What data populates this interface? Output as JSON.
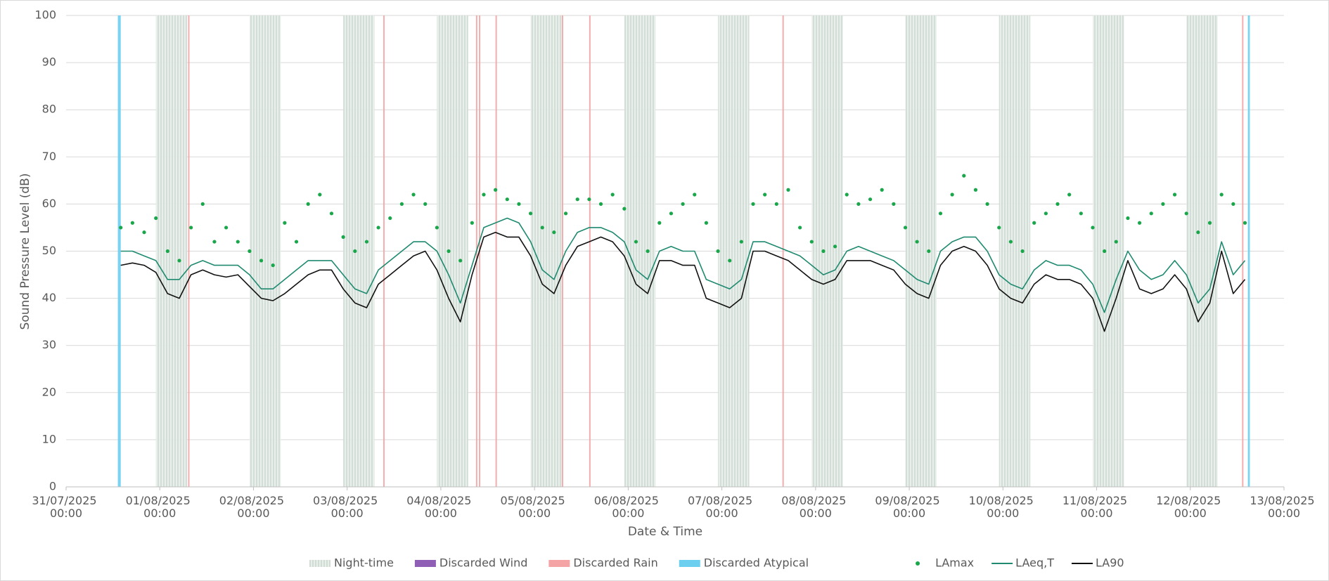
{
  "chart_data": {
    "type": "line",
    "xlabel": "Date & Time",
    "ylabel": "Sound Pressure Level (dB)",
    "xlim": [
      "31/07/2025 00:00",
      "13/08/2025 00:00"
    ],
    "xticks": [
      "31/07/2025 00:00",
      "01/08/2025 00:00",
      "02/08/2025 00:00",
      "03/08/2025 00:00",
      "04/08/2025 00:00",
      "05/08/2025 00:00",
      "06/08/2025 00:00",
      "07/08/2025 00:00",
      "08/08/2025 00:00",
      "09/08/2025 00:00",
      "10/08/2025 00:00",
      "11/08/2025 00:00",
      "12/08/2025 00:00",
      "13/08/2025 00:00"
    ],
    "ylim": [
      0,
      100
    ],
    "yticks": [
      0,
      10,
      20,
      30,
      40,
      50,
      60,
      70,
      80,
      90,
      100
    ],
    "grid": true,
    "legend": "bottom",
    "periods": [
      {
        "name": "Night-time",
        "color": "#d3ddd6",
        "ranges": [
          [
            "31/07/2025 23:00",
            "01/08/2025 07:00"
          ],
          [
            "01/08/2025 23:00",
            "02/08/2025 07:00"
          ],
          [
            "02/08/2025 23:00",
            "03/08/2025 07:00"
          ],
          [
            "03/08/2025 23:00",
            "04/08/2025 07:00"
          ],
          [
            "04/08/2025 23:00",
            "05/08/2025 07:00"
          ],
          [
            "05/08/2025 23:00",
            "06/08/2025 07:00"
          ],
          [
            "06/08/2025 23:00",
            "07/08/2025 07:00"
          ],
          [
            "07/08/2025 23:00",
            "08/08/2025 07:00"
          ],
          [
            "08/08/2025 23:00",
            "09/08/2025 07:00"
          ],
          [
            "09/08/2025 23:00",
            "10/08/2025 07:00"
          ],
          [
            "10/08/2025 23:00",
            "11/08/2025 07:00"
          ],
          [
            "11/08/2025 23:00",
            "12/08/2025 07:00"
          ]
        ]
      },
      {
        "name": "Discarded Wind",
        "color": "#8e5fb5",
        "ranges": []
      },
      {
        "name": "Discarded Rain",
        "color": "#f4a4a4",
        "ranges": [
          [
            "01/08/2025 07:15",
            "01/08/2025 07:30"
          ],
          [
            "03/08/2025 09:15",
            "03/08/2025 09:30"
          ],
          [
            "04/08/2025 09:00",
            "04/08/2025 09:15"
          ],
          [
            "04/08/2025 09:45",
            "04/08/2025 10:00"
          ],
          [
            "04/08/2025 14:00",
            "04/08/2025 14:15"
          ],
          [
            "05/08/2025 07:00",
            "05/08/2025 07:15"
          ],
          [
            "05/08/2025 14:00",
            "05/08/2025 14:15"
          ],
          [
            "07/08/2025 15:30",
            "07/08/2025 15:45"
          ],
          [
            "12/08/2025 13:15",
            "12/08/2025 13:30"
          ]
        ]
      },
      {
        "name": "Discarded Atypical",
        "color": "#6ccff0",
        "ranges": [
          [
            "31/07/2025 13:15",
            "31/07/2025 14:00"
          ],
          [
            "12/08/2025 14:45",
            "12/08/2025 15:15"
          ]
        ]
      }
    ],
    "x": [
      "31/07/2025 14:00",
      "31/07/2025 17:00",
      "31/07/2025 20:00",
      "31/07/2025 23:00",
      "01/08/2025 02:00",
      "01/08/2025 05:00",
      "01/08/2025 08:00",
      "01/08/2025 11:00",
      "01/08/2025 14:00",
      "01/08/2025 17:00",
      "01/08/2025 20:00",
      "01/08/2025 23:00",
      "02/08/2025 02:00",
      "02/08/2025 05:00",
      "02/08/2025 08:00",
      "02/08/2025 11:00",
      "02/08/2025 14:00",
      "02/08/2025 17:00",
      "02/08/2025 20:00",
      "02/08/2025 23:00",
      "03/08/2025 02:00",
      "03/08/2025 05:00",
      "03/08/2025 08:00",
      "03/08/2025 11:00",
      "03/08/2025 14:00",
      "03/08/2025 17:00",
      "03/08/2025 20:00",
      "03/08/2025 23:00",
      "04/08/2025 02:00",
      "04/08/2025 05:00",
      "04/08/2025 08:00",
      "04/08/2025 11:00",
      "04/08/2025 14:00",
      "04/08/2025 17:00",
      "04/08/2025 20:00",
      "04/08/2025 23:00",
      "05/08/2025 02:00",
      "05/08/2025 05:00",
      "05/08/2025 08:00",
      "05/08/2025 11:00",
      "05/08/2025 14:00",
      "05/08/2025 17:00",
      "05/08/2025 20:00",
      "05/08/2025 23:00",
      "06/08/2025 02:00",
      "06/08/2025 05:00",
      "06/08/2025 08:00",
      "06/08/2025 11:00",
      "06/08/2025 14:00",
      "06/08/2025 17:00",
      "06/08/2025 20:00",
      "06/08/2025 23:00",
      "07/08/2025 02:00",
      "07/08/2025 05:00",
      "07/08/2025 08:00",
      "07/08/2025 11:00",
      "07/08/2025 14:00",
      "07/08/2025 17:00",
      "07/08/2025 20:00",
      "07/08/2025 23:00",
      "08/08/2025 02:00",
      "08/08/2025 05:00",
      "08/08/2025 08:00",
      "08/08/2025 11:00",
      "08/08/2025 14:00",
      "08/08/2025 17:00",
      "08/08/2025 20:00",
      "08/08/2025 23:00",
      "09/08/2025 02:00",
      "09/08/2025 05:00",
      "09/08/2025 08:00",
      "09/08/2025 11:00",
      "09/08/2025 14:00",
      "09/08/2025 17:00",
      "09/08/2025 20:00",
      "09/08/2025 23:00",
      "10/08/2025 02:00",
      "10/08/2025 05:00",
      "10/08/2025 08:00",
      "10/08/2025 11:00",
      "10/08/2025 14:00",
      "10/08/2025 17:00",
      "10/08/2025 20:00",
      "10/08/2025 23:00",
      "11/08/2025 02:00",
      "11/08/2025 05:00",
      "11/08/2025 08:00",
      "11/08/2025 11:00",
      "11/08/2025 14:00",
      "11/08/2025 17:00",
      "11/08/2025 20:00",
      "11/08/2025 23:00",
      "12/08/2025 02:00",
      "12/08/2025 05:00",
      "12/08/2025 08:00",
      "12/08/2025 11:00",
      "12/08/2025 14:00"
    ],
    "series": [
      {
        "name": "LAmax",
        "color": "#1aa64b",
        "style": "markers",
        "values": [
          55,
          56,
          54,
          57,
          50,
          48,
          55,
          60,
          52,
          55,
          52,
          50,
          48,
          47,
          56,
          52,
          60,
          62,
          58,
          53,
          50,
          52,
          55,
          57,
          60,
          62,
          60,
          55,
          50,
          48,
          56,
          62,
          63,
          61,
          60,
          58,
          55,
          54,
          58,
          61,
          61,
          60,
          62,
          59,
          52,
          50,
          56,
          58,
          60,
          62,
          56,
          50,
          48,
          52,
          60,
          62,
          60,
          63,
          55,
          52,
          50,
          51,
          62,
          60,
          61,
          63,
          60,
          55,
          52,
          50,
          58,
          62,
          66,
          63,
          60,
          55,
          52,
          50,
          56,
          58,
          60,
          62,
          58,
          55,
          50,
          52,
          57,
          56,
          58,
          60,
          62,
          58,
          54,
          56,
          62,
          60,
          56
        ]
      },
      {
        "name": "LAeq,T",
        "color": "#1f8a70",
        "style": "line",
        "values": [
          50,
          50,
          49,
          48,
          44,
          44,
          47,
          48,
          47,
          47,
          47,
          45,
          42,
          42,
          44,
          46,
          48,
          48,
          48,
          45,
          42,
          41,
          46,
          48,
          50,
          52,
          52,
          50,
          45,
          39,
          47,
          55,
          56,
          57,
          56,
          52,
          46,
          44,
          50,
          54,
          55,
          55,
          54,
          52,
          46,
          44,
          50,
          51,
          50,
          50,
          44,
          43,
          42,
          44,
          52,
          52,
          51,
          50,
          49,
          47,
          45,
          46,
          50,
          51,
          50,
          49,
          48,
          46,
          44,
          43,
          50,
          52,
          53,
          53,
          50,
          45,
          43,
          42,
          46,
          48,
          47,
          47,
          46,
          43,
          37,
          44,
          50,
          46,
          44,
          45,
          48,
          45,
          39,
          42,
          52,
          45,
          48
        ]
      },
      {
        "name": "LA90",
        "color": "#111111",
        "style": "line",
        "values": [
          47,
          47.5,
          47,
          45.5,
          41,
          40,
          45,
          46,
          45,
          44.5,
          45,
          42.5,
          40,
          39.5,
          41,
          43,
          45,
          46,
          46,
          42,
          39,
          38,
          43,
          45,
          47,
          49,
          50,
          46,
          40,
          35,
          45,
          53,
          54,
          53,
          53,
          49,
          43,
          41,
          47,
          51,
          52,
          53,
          52,
          49,
          43,
          41,
          48,
          48,
          47,
          47,
          40,
          39,
          38,
          40,
          50,
          50,
          49,
          48,
          46,
          44,
          43,
          44,
          48,
          48,
          48,
          47,
          46,
          43,
          41,
          40,
          47,
          50,
          51,
          50,
          47,
          42,
          40,
          39,
          43,
          45,
          44,
          44,
          43,
          40,
          33,
          40,
          48,
          42,
          41,
          42,
          45,
          42,
          35,
          39,
          50,
          41,
          44
        ]
      }
    ]
  }
}
